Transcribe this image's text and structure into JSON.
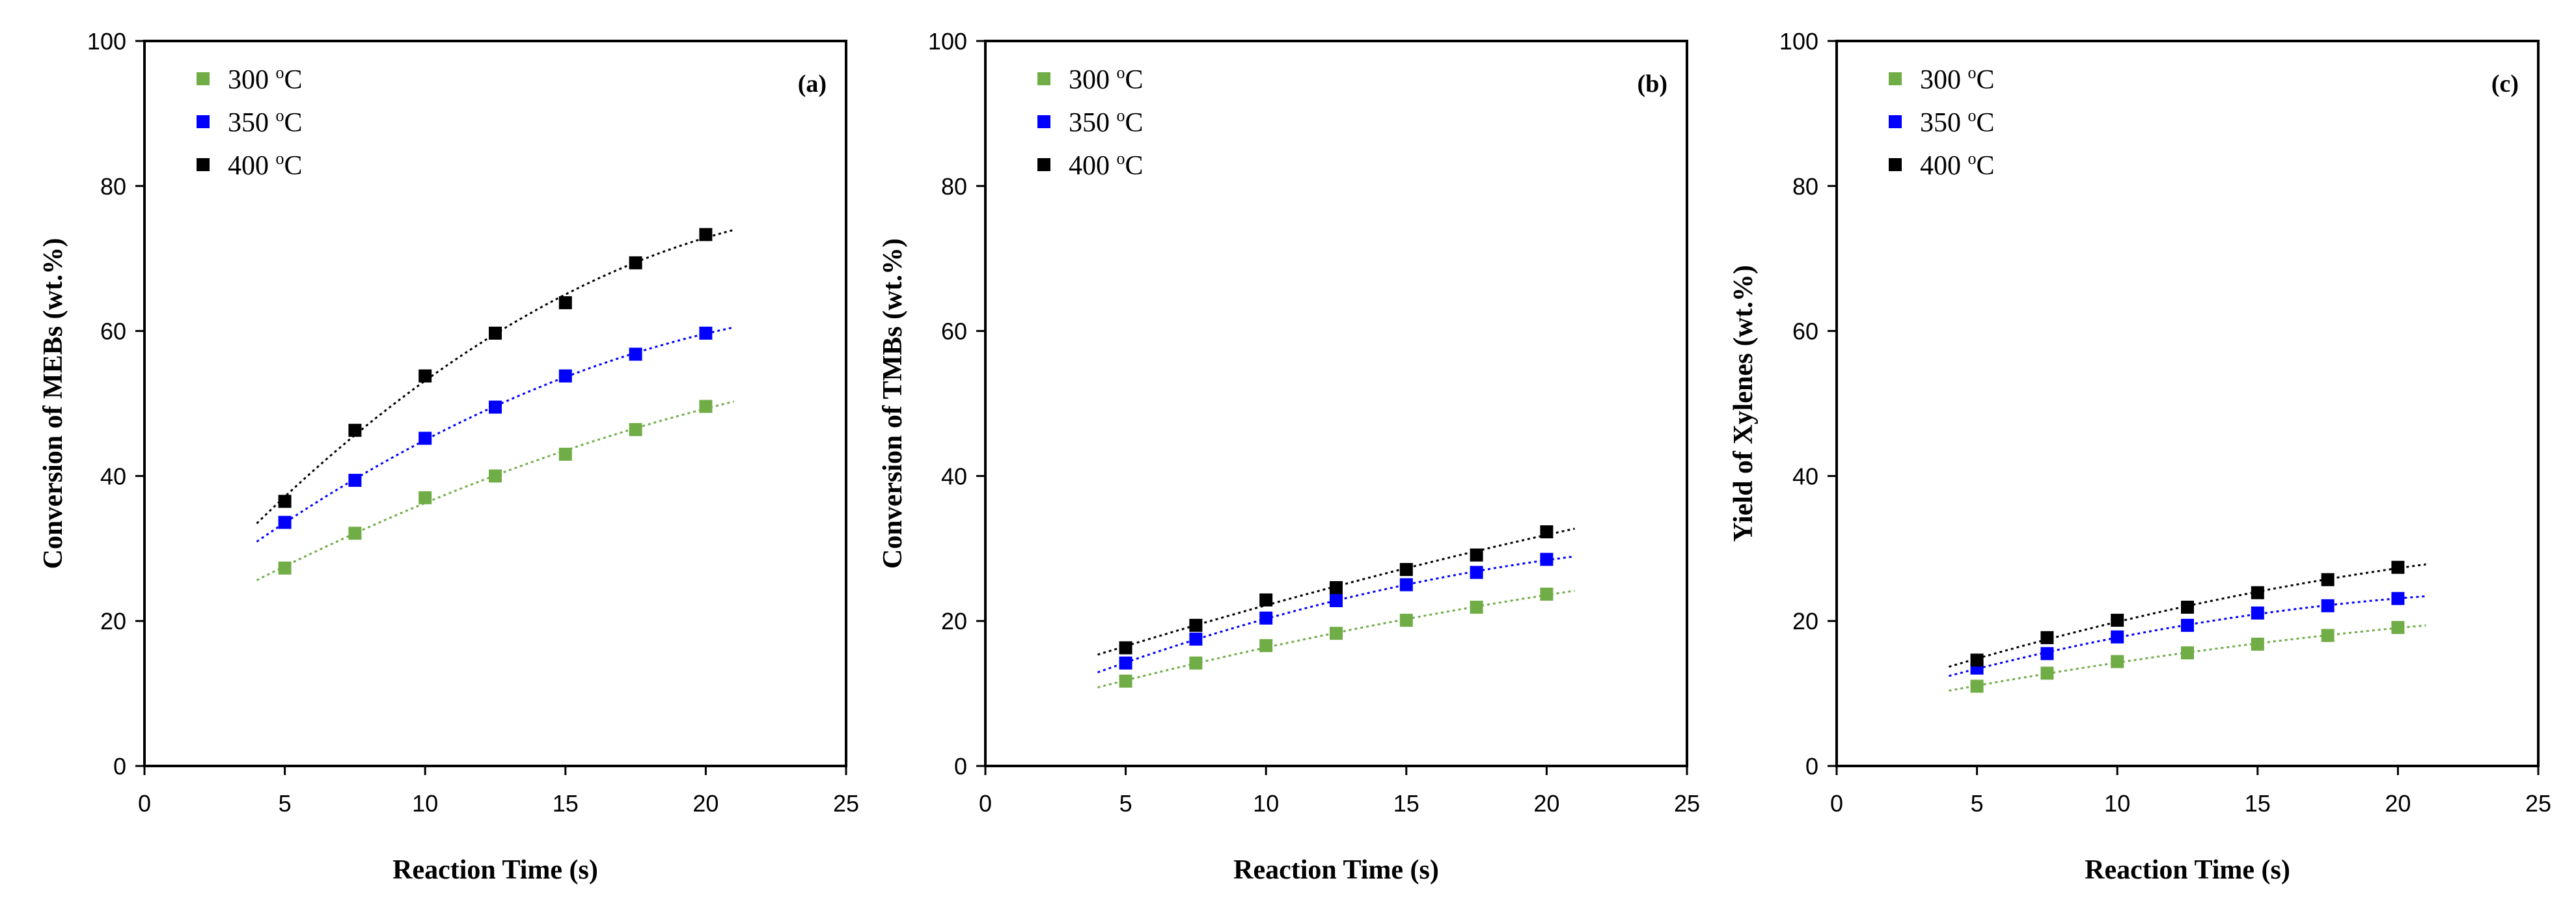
{
  "chart_data": [
    {
      "type": "scatter",
      "panel": "(a)",
      "xlabel": "Reaction Time (s)",
      "ylabel": "Conversion of MEBs (wt.%)",
      "xlim": [
        0,
        25
      ],
      "ylim": [
        0,
        100
      ],
      "xticks": [
        "0",
        "5",
        "10",
        "15",
        "20",
        "25"
      ],
      "yticks": [
        "0",
        "20",
        "40",
        "60",
        "80",
        "100"
      ],
      "legend_position": "top-left",
      "series": [
        {
          "name": "300",
          "unit": "oC",
          "color": "#70ad47",
          "x": [
            5,
            7.5,
            10,
            12.5,
            15,
            17.5,
            20
          ],
          "y": [
            27.3,
            32.1,
            37,
            40,
            43,
            46.4,
            49.6
          ],
          "trend_range": [
            4,
            21
          ]
        },
        {
          "name": "350",
          "unit": "oC",
          "color": "#0000ff",
          "x": [
            5,
            7.5,
            10,
            12.5,
            15,
            17.5,
            20
          ],
          "y": [
            33.6,
            39.4,
            45.2,
            49.5,
            53.8,
            56.8,
            59.7
          ],
          "trend_range": [
            4,
            21
          ]
        },
        {
          "name": "400",
          "unit": "oC",
          "color": "#000000",
          "x": [
            5,
            7.5,
            10,
            12.5,
            15,
            17.5,
            20
          ],
          "y": [
            36.5,
            46.3,
            53.8,
            59.7,
            63.9,
            69.4,
            73.3
          ],
          "trend_range": [
            4,
            21
          ]
        }
      ]
    },
    {
      "type": "scatter",
      "panel": "(b)",
      "xlabel": "Reaction Time (s)",
      "ylabel": "Conversion of TMBs (wt.%)",
      "xlim": [
        0,
        25
      ],
      "ylim": [
        0,
        100
      ],
      "xticks": [
        "0",
        "5",
        "10",
        "15",
        "20",
        "25"
      ],
      "yticks": [
        "0",
        "20",
        "40",
        "60",
        "80",
        "100"
      ],
      "legend_position": "top-left",
      "series": [
        {
          "name": "300",
          "unit": "oC",
          "color": "#70ad47",
          "x": [
            5,
            7.5,
            10,
            12.5,
            15,
            17.5,
            20
          ],
          "y": [
            11.7,
            14.2,
            16.6,
            18.3,
            20.1,
            21.9,
            23.7
          ],
          "trend_range": [
            4,
            21
          ]
        },
        {
          "name": "350",
          "unit": "oC",
          "color": "#0000ff",
          "x": [
            5,
            7.5,
            10,
            12.5,
            15,
            17.5,
            20
          ],
          "y": [
            14.2,
            17.5,
            20.4,
            22.8,
            25,
            26.7,
            28.5
          ],
          "trend_range": [
            4,
            21
          ]
        },
        {
          "name": "400",
          "unit": "oC",
          "color": "#000000",
          "x": [
            5,
            7.5,
            10,
            12.5,
            15,
            17.5,
            20
          ],
          "y": [
            16.3,
            19.4,
            22.9,
            24.6,
            27.1,
            29.1,
            32.3
          ],
          "trend_range": [
            4,
            21
          ]
        }
      ]
    },
    {
      "type": "scatter",
      "panel": "(c)",
      "xlabel": "Reaction Time (s)",
      "ylabel": "Yield of Xylenes (wt.%)",
      "xlim": [
        0,
        25
      ],
      "ylim": [
        0,
        100
      ],
      "xticks": [
        "0",
        "5",
        "10",
        "15",
        "20",
        "25"
      ],
      "yticks": [
        "0",
        "20",
        "40",
        "60",
        "80",
        "100"
      ],
      "legend_position": "top-left",
      "series": [
        {
          "name": "300",
          "unit": "oC",
          "color": "#70ad47",
          "x": [
            5,
            7.5,
            10,
            12.5,
            15,
            17.5,
            20
          ],
          "y": [
            11,
            12.8,
            14.4,
            15.6,
            16.8,
            18,
            19.1
          ],
          "trend_range": [
            4,
            21
          ]
        },
        {
          "name": "350",
          "unit": "oC",
          "color": "#0000ff",
          "x": [
            5,
            7.5,
            10,
            12.5,
            15,
            17.5,
            20
          ],
          "y": [
            13.5,
            15.5,
            17.8,
            19.4,
            21.1,
            22.1,
            23.1
          ],
          "trend_range": [
            4,
            21
          ]
        },
        {
          "name": "400",
          "unit": "oC",
          "color": "#000000",
          "x": [
            5,
            7.5,
            10,
            12.5,
            15,
            17.5,
            20
          ],
          "y": [
            14.6,
            17.7,
            20.1,
            21.9,
            23.9,
            25.7,
            27.4
          ],
          "trend_range": [
            4,
            21
          ]
        }
      ]
    }
  ]
}
